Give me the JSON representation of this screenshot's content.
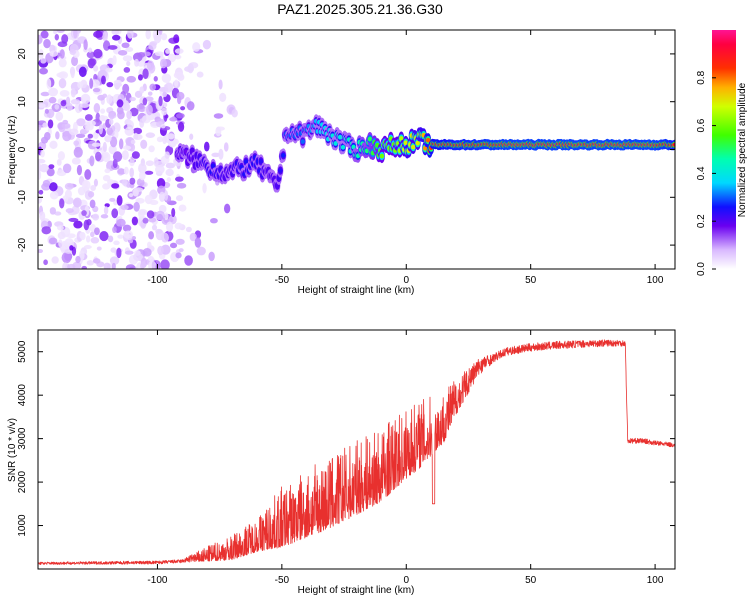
{
  "title": "PAZ1.2025.305.21.36.G30",
  "chart_data": [
    {
      "type": "heatmap",
      "title": "PAZ1.2025.305.21.36.G30",
      "xlabel": "Height of straight line (km)",
      "ylabel": "Frequency (Hz)",
      "xlim": [
        -148,
        108
      ],
      "ylim": [
        -25,
        25
      ],
      "xticks": [
        -100,
        -50,
        0,
        50,
        100
      ],
      "yticks": [
        -20,
        -10,
        0,
        10,
        20
      ],
      "ridge": {
        "x": [
          -92,
          -85,
          -78,
          -72,
          -66,
          -60,
          -55,
          -52,
          -48,
          -42,
          -36,
          -30,
          -25,
          -20,
          -15,
          -10,
          -5,
          0,
          5,
          10,
          20,
          40,
          60,
          80,
          100,
          108
        ],
        "freq": [
          -1,
          -2,
          -4,
          -5,
          -4,
          -3,
          -6,
          -8,
          4,
          3,
          5,
          3,
          1,
          0,
          1,
          0,
          1,
          1,
          2,
          1,
          1,
          1,
          1,
          1,
          1,
          1
        ],
        "amplitude": [
          0.15,
          0.2,
          0.25,
          0.2,
          0.25,
          0.25,
          0.2,
          0.2,
          0.3,
          0.3,
          0.35,
          0.4,
          0.4,
          0.45,
          0.5,
          0.6,
          0.6,
          0.7,
          0.7,
          0.85,
          0.9,
          0.95,
          0.95,
          0.95,
          0.95,
          0.9
        ]
      },
      "colorbar": {
        "label": "Normalized spectral amplitude",
        "range": [
          0,
          1
        ],
        "ticks": [
          "0.0",
          "0.2",
          "0.4",
          "0.6",
          "0.8"
        ]
      }
    },
    {
      "type": "line",
      "xlabel": "Height of straight line (km)",
      "ylabel": "SNR (10 * v/v)",
      "xlim": [
        -148,
        108
      ],
      "ylim": [
        0,
        5500
      ],
      "xticks": [
        -100,
        -50,
        0,
        50,
        100
      ],
      "yticks": [
        1000,
        2000,
        3000,
        4000,
        5000
      ],
      "color": "#e8302e",
      "trend": {
        "x": [
          -148,
          -100,
          -90,
          -80,
          -70,
          -60,
          -50,
          -40,
          -30,
          -20,
          -10,
          0,
          10,
          15,
          20,
          30,
          40,
          50,
          60,
          70,
          80,
          88,
          89,
          95,
          100,
          108
        ],
        "y": [
          130,
          150,
          180,
          350,
          500,
          800,
          1200,
          1500,
          1800,
          2100,
          2400,
          2900,
          3300,
          3500,
          4000,
          4700,
          5000,
          5100,
          5150,
          5180,
          5200,
          5200,
          2950,
          2950,
          2900,
          2850
        ]
      },
      "variability": {
        "x": [
          -148,
          -90,
          -80,
          -60,
          -50,
          -30,
          -10,
          5,
          15,
          25,
          35,
          88,
          89,
          108
        ],
        "spread": [
          60,
          80,
          350,
          800,
          1400,
          1700,
          1700,
          1600,
          1200,
          600,
          200,
          150,
          120,
          100
        ]
      }
    }
  ]
}
